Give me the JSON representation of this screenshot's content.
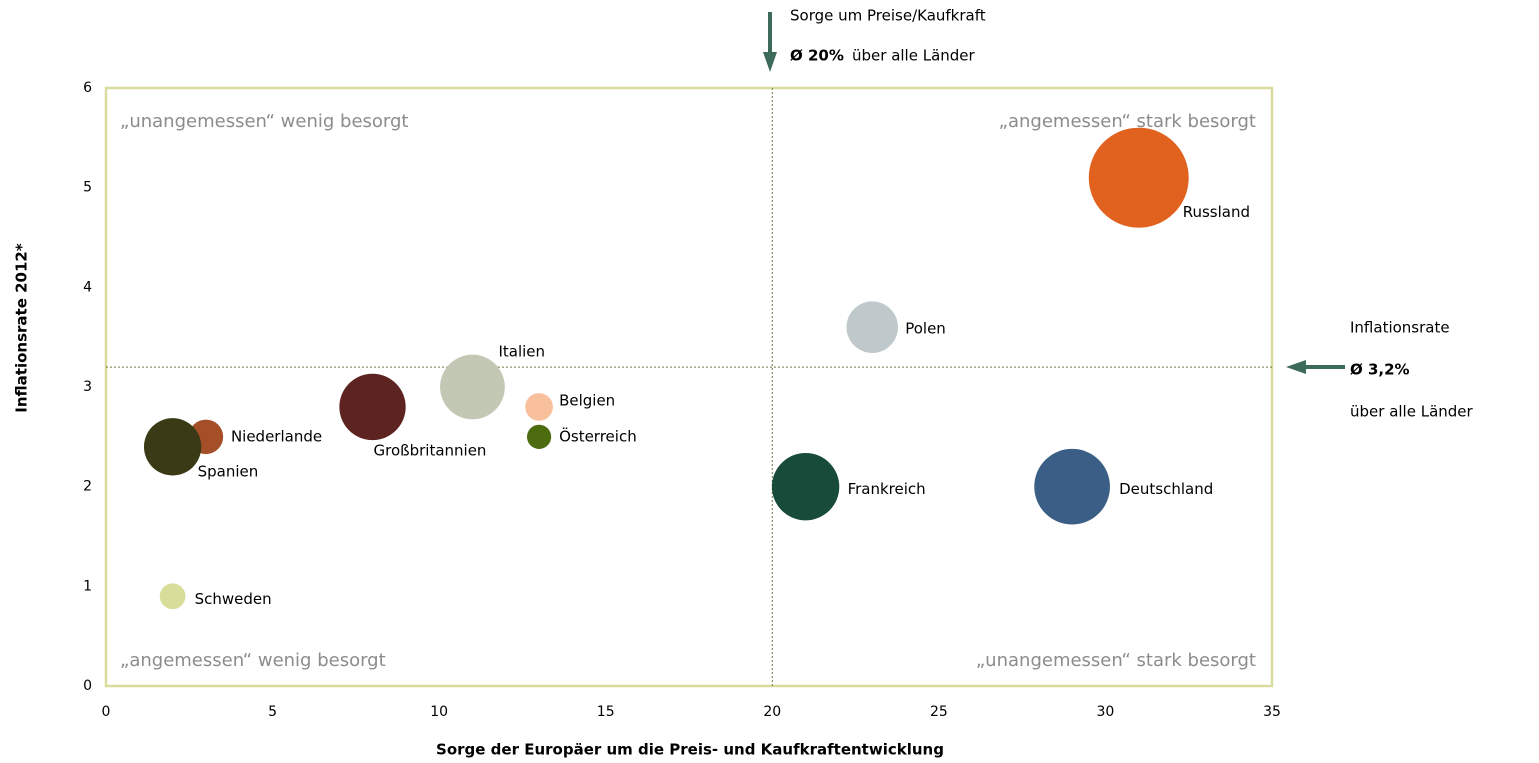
{
  "chart_data": {
    "type": "bubble",
    "x_label": "Sorge der Europäer um die Preis- und Kaufkraftentwicklung",
    "y_label": "Inflationsrate 2012*",
    "xlim": [
      0,
      35
    ],
    "xticks": [
      0,
      5,
      10,
      15,
      20,
      25,
      30,
      35
    ],
    "ylim": [
      0,
      6
    ],
    "yticks": [
      0,
      1,
      2,
      3,
      4,
      5,
      6
    ],
    "frame_color": "#d9dc9c",
    "reference_lines": {
      "x": 20,
      "y": 3.2,
      "color": "#6b7a3a"
    },
    "quadrant_labels": [
      "„unangemessen“ wenig besorgt",
      "„angemessen“ stark besorgt",
      "„angemessen“ wenig besorgt",
      "„unangemessen“ stark besorgt"
    ],
    "annotations": {
      "x_ref_title": "Sorge um Preise/Kaufkraft",
      "x_ref_value": "Ø 20%",
      "x_ref_note": "über alle Länder",
      "y_ref_title": "Inflationsrate",
      "y_ref_value": "Ø 3,2%",
      "y_ref_note": "über alle Länder"
    },
    "series": [
      {
        "name": "Russland",
        "color": "#e0621e",
        "x": [
          31
        ],
        "values": [
          5.1
        ],
        "sizes": [
          143
        ]
      },
      {
        "name": "Polen",
        "color": "#bfc9cc",
        "x": [
          23
        ],
        "values": [
          3.6
        ],
        "sizes": [
          38
        ]
      },
      {
        "name": "Italien",
        "color": "#c3c8b5",
        "x": [
          11
        ],
        "values": [
          3.0
        ],
        "sizes": [
          60
        ]
      },
      {
        "name": "Belgien",
        "color": "#f9c09e",
        "x": [
          13
        ],
        "values": [
          2.8
        ],
        "sizes": [
          11
        ]
      },
      {
        "name": "Österreich",
        "color": "#4d6b0f",
        "x": [
          13
        ],
        "values": [
          2.5
        ],
        "sizes": [
          8.4
        ]
      },
      {
        "name": "Großbritannien",
        "color": "#5c2320",
        "x": [
          8
        ],
        "values": [
          2.8
        ],
        "sizes": [
          63
        ]
      },
      {
        "name": "Niederlande",
        "color": "#a44f28",
        "x": [
          3
        ],
        "values": [
          2.5
        ],
        "sizes": [
          17
        ]
      },
      {
        "name": "Spanien",
        "color": "#3a3a16",
        "x": [
          2
        ],
        "values": [
          2.4
        ],
        "sizes": [
          47
        ]
      },
      {
        "name": "Schweden",
        "color": "#d9dd9a",
        "x": [
          2
        ],
        "values": [
          0.9
        ],
        "sizes": [
          9.5
        ]
      },
      {
        "name": "Frankreich",
        "color": "#184b3a",
        "x": [
          21
        ],
        "values": [
          2.0
        ],
        "sizes": [
          65
        ]
      },
      {
        "name": "Deutschland",
        "color": "#3a5e85",
        "x": [
          29
        ],
        "values": [
          2.0
        ],
        "sizes": [
          82
        ]
      }
    ]
  }
}
